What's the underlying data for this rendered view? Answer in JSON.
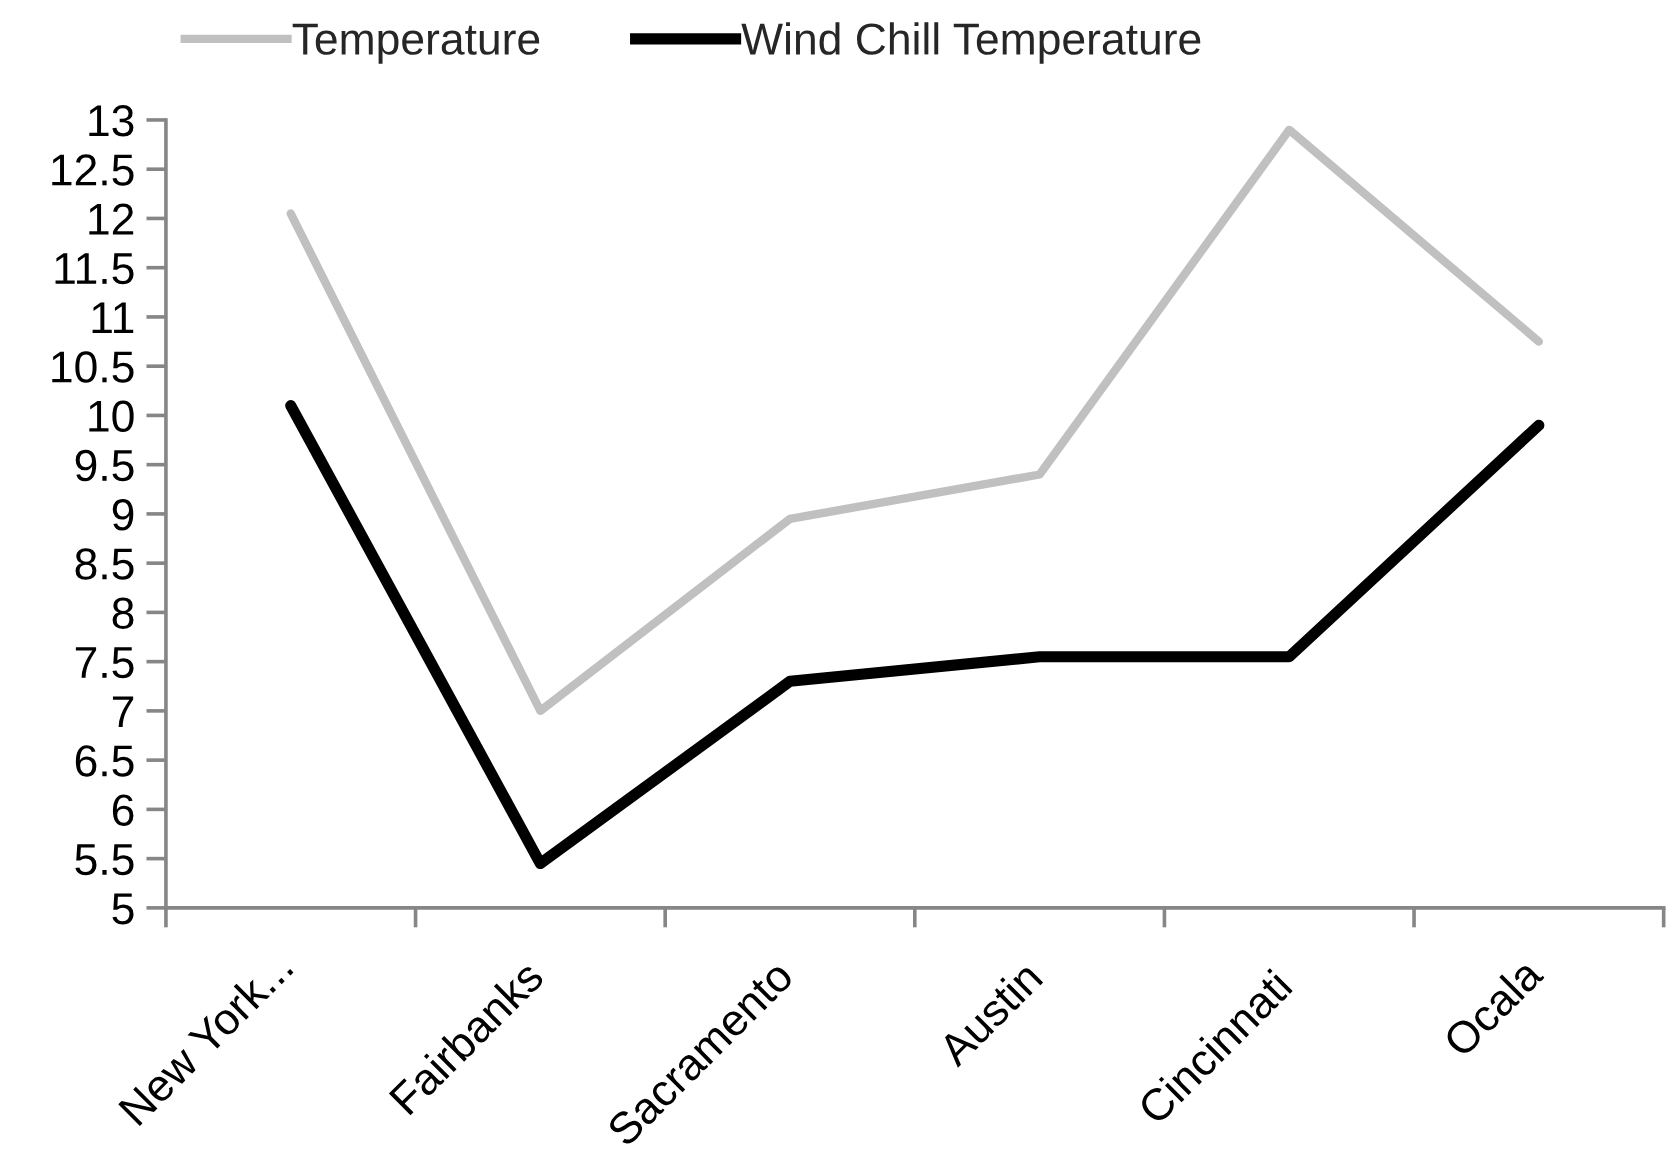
{
  "chart_data": {
    "type": "line",
    "categories": [
      "New York...",
      "Fairbanks",
      "Sacramento",
      "Austin",
      "Cincinnati",
      "Ocala"
    ],
    "series": [
      {
        "name": "Temperature",
        "color": "#c0c0c0",
        "values": [
          12.05,
          7,
          8.95,
          9.4,
          12.9,
          10.75
        ]
      },
      {
        "name": "Wind Chill Temperature",
        "color": "#000000",
        "values": [
          10.1,
          5.45,
          7.3,
          7.55,
          7.55,
          9.9
        ]
      }
    ],
    "ylim": [
      5,
      13
    ],
    "yticks": [
      5,
      5.5,
      6,
      6.5,
      7,
      7.5,
      8,
      8.5,
      9,
      9.5,
      10,
      10.5,
      11,
      11.5,
      12,
      12.5,
      13
    ],
    "legend": "top"
  }
}
